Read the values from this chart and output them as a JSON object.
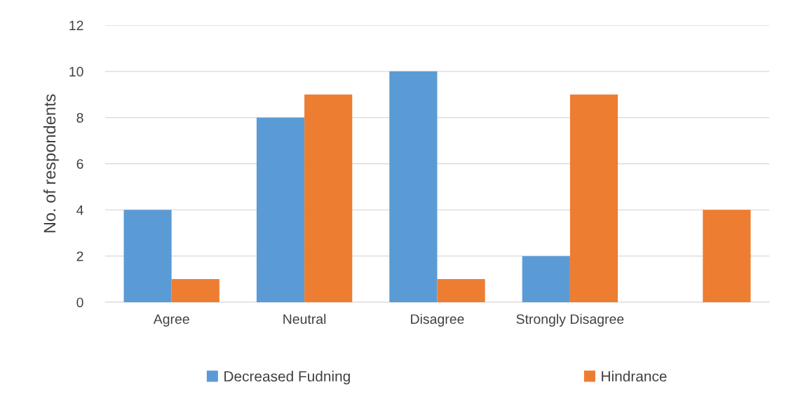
{
  "chart_data": {
    "type": "bar",
    "ylabel": "No. of respondents",
    "categories": [
      "Agree",
      "Neutral",
      "Disagree",
      "Strongly Disagree",
      null
    ],
    "series": [
      {
        "name": "Decreased Fudning",
        "color": "#5b9bd5",
        "values": [
          4,
          8,
          10,
          2,
          null
        ]
      },
      {
        "name": "Hindrance",
        "color": "#ed7d31",
        "values": [
          1,
          9,
          1,
          9,
          4
        ]
      }
    ],
    "ylim": [
      0,
      12
    ],
    "yticks": [
      0,
      2,
      4,
      6,
      8,
      10,
      12
    ],
    "grid": "y",
    "legend": "bottom"
  }
}
